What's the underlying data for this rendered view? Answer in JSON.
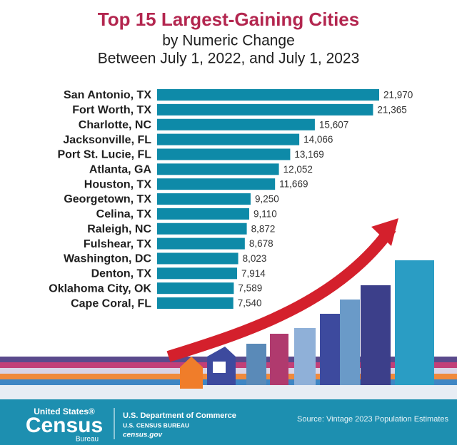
{
  "chart_data": {
    "type": "bar",
    "orientation": "horizontal",
    "title": "Top 15 Largest-Gaining Cities",
    "subtitle": [
      "by Numeric Change",
      "Between July 1, 2022, and July 1, 2023"
    ],
    "categories": [
      "San Antonio, TX",
      "Fort Worth, TX",
      "Charlotte, NC",
      "Jacksonville, FL",
      "Port St. Lucie, FL",
      "Atlanta, GA",
      "Houston, TX",
      "Georgetown, TX",
      "Celina, TX",
      "Raleigh, NC",
      "Fulshear, TX",
      "Washington, DC",
      "Denton, TX",
      "Oklahoma City, OK",
      "Cape Coral, FL"
    ],
    "values": [
      21970,
      21365,
      15607,
      14066,
      13169,
      12052,
      11669,
      9250,
      9110,
      8872,
      8678,
      8023,
      7914,
      7589,
      7540
    ],
    "value_labels": [
      "21,970",
      "21,365",
      "15,607",
      "14,066",
      "13,169",
      "12,052",
      "11,669",
      "9,250",
      "9,110",
      "8,872",
      "8,678",
      "8,023",
      "7,914",
      "7,589",
      "7,540"
    ],
    "color": "#0e8aa8"
  },
  "footer": {
    "logo_top": "United States®",
    "logo_main": "Census",
    "logo_bottom": "Bureau",
    "department": "U.S. Department of Commerce",
    "bureau": "U.S. CENSUS BUREAU",
    "website": "census.gov",
    "source": "Source: Vintage 2023 Population Estimates"
  }
}
